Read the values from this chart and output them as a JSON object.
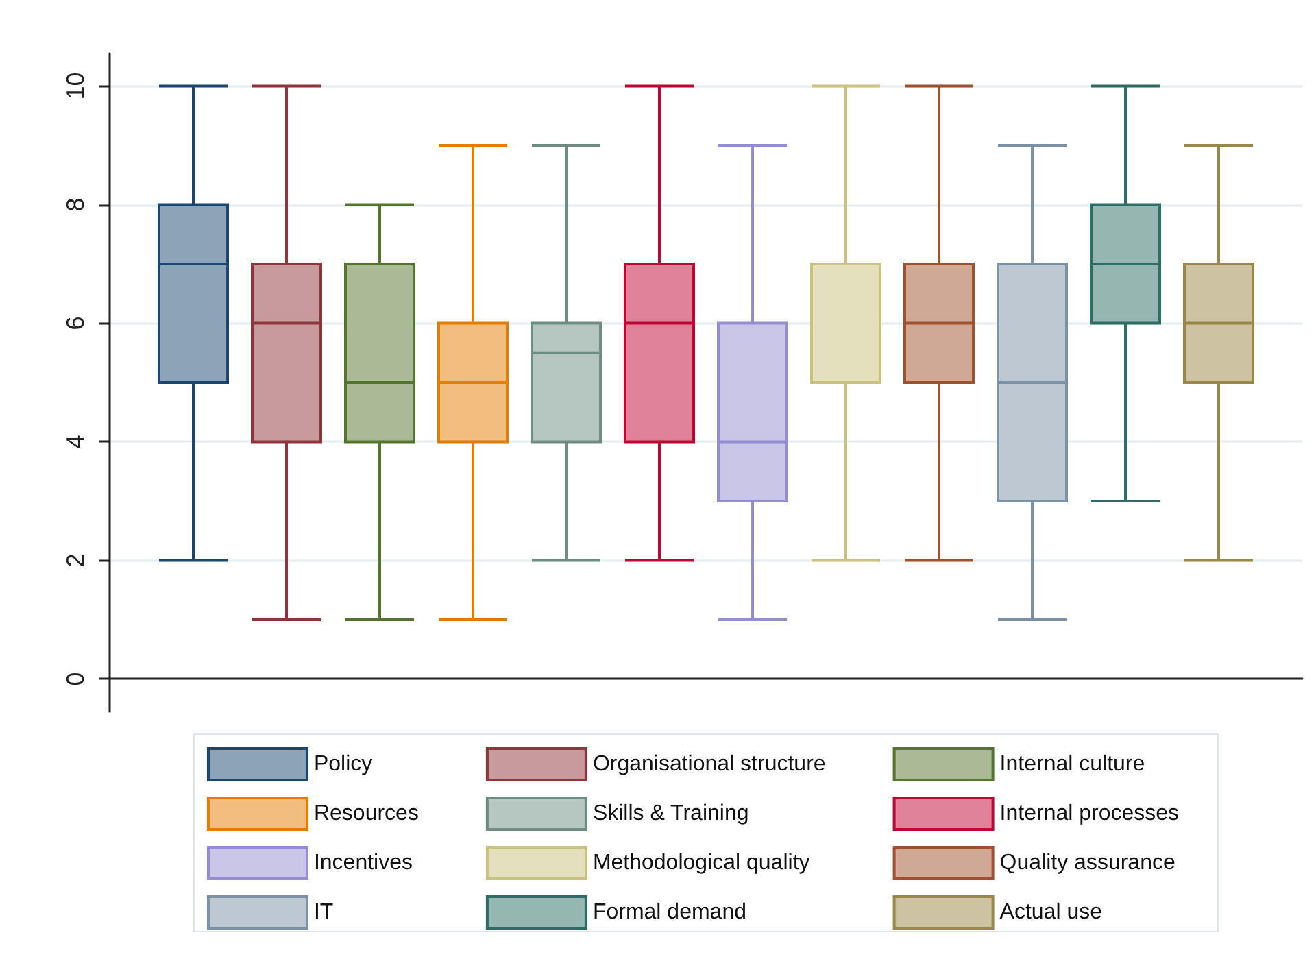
{
  "chart_data": {
    "type": "box",
    "categories": [
      null
    ],
    "series": [
      {
        "name": "Policy",
        "color": "#8da3b7",
        "boxes": [
          {
            "low": 2,
            "q1": 5,
            "median": 7,
            "q3": 8,
            "high": 10
          }
        ]
      },
      {
        "name": "Organisational structure",
        "color": "#c79a9d",
        "boxes": [
          {
            "low": 1,
            "q1": 4,
            "median": 6,
            "q3": 7,
            "high": 10
          }
        ]
      },
      {
        "name": "Internal culture",
        "color": "#aaba97",
        "boxes": [
          {
            "low": 1,
            "q1": 4,
            "median": 5,
            "q3": 7,
            "high": 8
          }
        ]
      },
      {
        "name": "Resources",
        "color": "#f1be7f",
        "boxes": [
          {
            "low": 1,
            "q1": 4,
            "median": 5,
            "q3": 6,
            "high": 9
          }
        ]
      },
      {
        "name": "Skills & Training",
        "color": "#b6c6c1",
        "boxes": [
          {
            "low": 2,
            "q1": 4,
            "median": 5.5,
            "q3": 6,
            "high": 9
          }
        ]
      },
      {
        "name": "Internal processes",
        "color": "#e08299",
        "boxes": [
          {
            "low": 2,
            "q1": 4,
            "median": 6,
            "q3": 7,
            "high": 10
          }
        ]
      },
      {
        "name": "Incentives",
        "color": "#c9c6e8",
        "boxes": [
          {
            "low": 1,
            "q1": 3,
            "median": 4,
            "q3": 6,
            "high": 9
          }
        ]
      },
      {
        "name": "Methodological quality",
        "color": "#e4e0be",
        "boxes": [
          {
            "low": 2,
            "q1": 5,
            "median": 7,
            "q3": 7,
            "high": 10
          }
        ]
      },
      {
        "name": "Quality assurance",
        "color": "#cfa896",
        "boxes": [
          {
            "low": 2,
            "q1": 5,
            "median": 6,
            "q3": 7,
            "high": 10
          }
        ]
      },
      {
        "name": "IT",
        "color": "#bdc8d3",
        "boxes": [
          {
            "low": 1,
            "q1": 3,
            "median": 5,
            "q3": 7,
            "high": 9
          }
        ]
      },
      {
        "name": "Formal demand",
        "color": "#96b6b2",
        "boxes": [
          {
            "low": 3,
            "q1": 6,
            "median": 7,
            "q3": 8,
            "high": 10
          }
        ]
      },
      {
        "name": "Actual use",
        "color": "#cdc3a3",
        "boxes": [
          {
            "low": 2,
            "q1": 5,
            "median": 6,
            "q3": 7,
            "high": 9
          }
        ]
      }
    ],
    "ylim": [
      -0.55,
      10.55
    ],
    "yticks": [
      0,
      2,
      4,
      6,
      8,
      10
    ],
    "grid": "y",
    "legend": "bottom",
    "tick_labels": "y"
  }
}
